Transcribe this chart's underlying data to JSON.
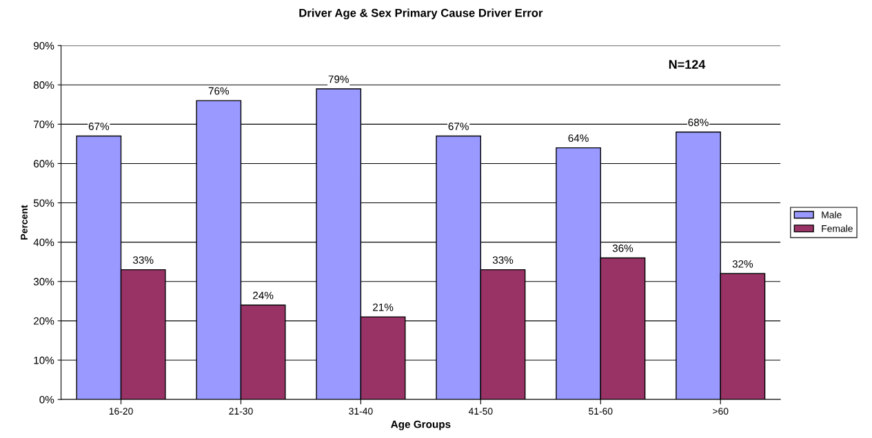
{
  "chart_data": {
    "type": "bar",
    "title": "Driver Age & Sex Primary Cause Driver Error",
    "xlabel": "Age Groups",
    "ylabel": "Percent",
    "categories": [
      "16-20",
      "21-30",
      "31-40",
      "41-50",
      "51-60",
      ">60"
    ],
    "series": [
      {
        "name": "Male",
        "color": "#9999ff",
        "values": [
          67,
          76,
          79,
          67,
          64,
          68
        ],
        "value_labels": [
          "67%",
          "76%",
          "79%",
          "67%",
          "64%",
          "68%"
        ]
      },
      {
        "name": "Female",
        "color": "#993366",
        "values": [
          33,
          24,
          21,
          33,
          36,
          32
        ],
        "value_labels": [
          "33%",
          "24%",
          "21%",
          "33%",
          "36%",
          "32%"
        ]
      }
    ],
    "ylim": [
      0,
      90
    ],
    "yticks": [
      {
        "value": 0,
        "label": "0%"
      },
      {
        "value": 10,
        "label": "10%"
      },
      {
        "value": 20,
        "label": "20%"
      },
      {
        "value": 30,
        "label": "30%"
      },
      {
        "value": 40,
        "label": "40%"
      },
      {
        "value": 50,
        "label": "50%"
      },
      {
        "value": 60,
        "label": "60%"
      },
      {
        "value": 70,
        "label": "70%"
      },
      {
        "value": 80,
        "label": "80%"
      },
      {
        "value": 90,
        "label": "90%"
      }
    ],
    "grid": "y",
    "legend": "right",
    "annotations": [
      "N=124"
    ]
  }
}
